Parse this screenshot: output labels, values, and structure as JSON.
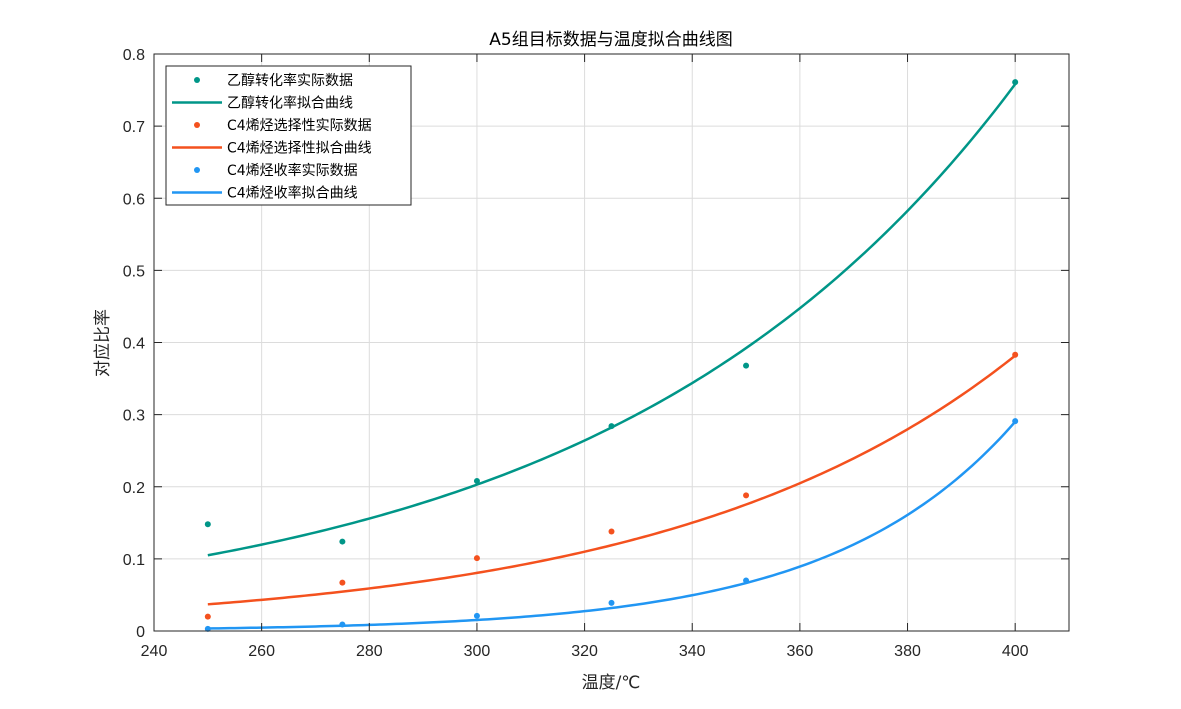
{
  "chart_data": {
    "type": "line",
    "title": "A5组目标数据与温度拟合曲线图",
    "xlabel": "温度/℃",
    "ylabel": "对应比率",
    "xlim": [
      240,
      410
    ],
    "ylim": [
      0,
      0.8
    ],
    "xticks": [
      240,
      260,
      280,
      300,
      320,
      340,
      360,
      380,
      400
    ],
    "yticks": [
      0,
      0.1,
      0.2,
      0.3,
      0.4,
      0.5,
      0.6,
      0.7,
      0.8
    ],
    "xtick_labels": [
      "240",
      "260",
      "280",
      "300",
      "320",
      "340",
      "360",
      "380",
      "400"
    ],
    "ytick_labels": [
      "0",
      "0.1",
      "0.2",
      "0.3",
      "0.4",
      "0.5",
      "0.6",
      "0.7",
      "0.8"
    ],
    "grid": true,
    "legend_position": "top-left",
    "x": [
      250,
      275,
      300,
      325,
      350,
      400
    ],
    "series": [
      {
        "name": "乙醇转化率实际数据",
        "kind": "points",
        "color": "#009688",
        "values": [
          0.148,
          0.124,
          0.208,
          0.284,
          0.368,
          0.761
        ]
      },
      {
        "name": "乙醇转化率拟合曲线",
        "kind": "line",
        "color": "#009688",
        "fit": {
          "a": 0.105,
          "b": 0.01318,
          "x0": 250
        }
      },
      {
        "name": "C4烯烃选择性实际数据",
        "kind": "points",
        "color": "#F4511E",
        "values": [
          0.02,
          0.067,
          0.101,
          0.138,
          0.188,
          0.383
        ]
      },
      {
        "name": "C4烯烃选择性拟合曲线",
        "kind": "line",
        "color": "#F4511E",
        "fit": {
          "a": 0.037,
          "b": 0.01556,
          "x0": 250
        }
      },
      {
        "name": "C4烯烃收率实际数据",
        "kind": "points",
        "color": "#2196F3",
        "values": [
          0.003,
          0.009,
          0.021,
          0.039,
          0.07,
          0.291
        ]
      },
      {
        "name": "C4烯烃收率拟合曲线",
        "kind": "line",
        "color": "#2196F3",
        "fit": {
          "a": 0.0035,
          "b": 0.02945,
          "x0": 250
        }
      }
    ]
  }
}
